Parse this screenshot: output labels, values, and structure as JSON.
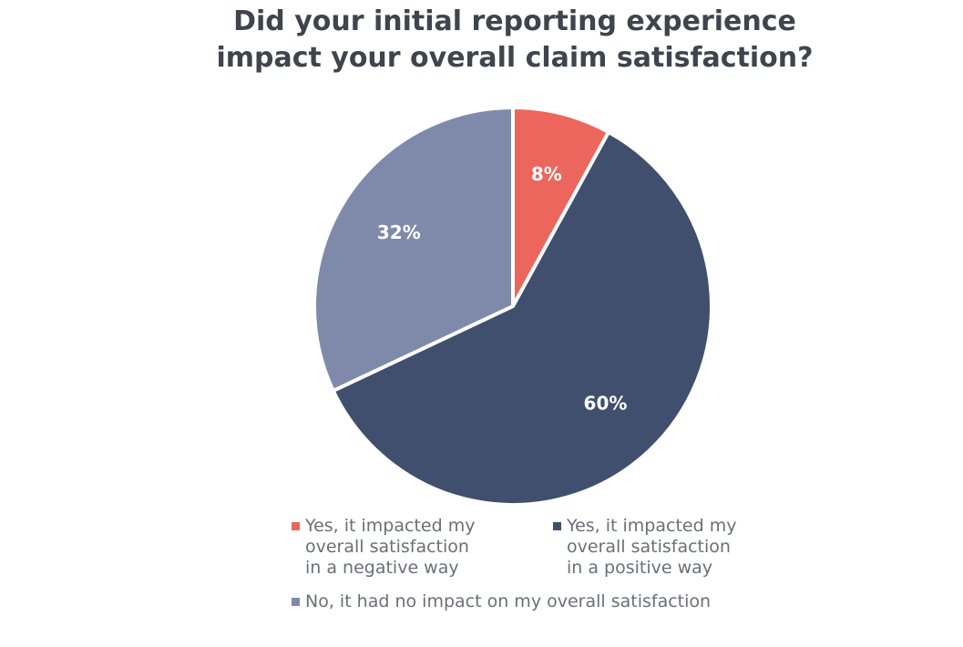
{
  "chart_data": {
    "type": "pie",
    "title_lines": [
      "Did your initial reporting experience",
      "impact your overall claim satisfaction?"
    ],
    "slices": [
      {
        "label_lines": [
          "Yes, it impacted my",
          "overall satisfaction",
          "in a negative way"
        ],
        "value": 8,
        "value_label": "8%",
        "color": "#ec665d"
      },
      {
        "label_lines": [
          "Yes, it impacted my",
          "overall satisfaction",
          "in a positive way"
        ],
        "value": 60,
        "value_label": "60%",
        "color": "#414f6e"
      },
      {
        "label_lines": [
          "No, it had no impact on my overall satisfaction"
        ],
        "value": 32,
        "value_label": "32%",
        "color": "#7f8aab"
      }
    ],
    "start_angle_deg": 0,
    "direction": "clockwise",
    "legend_position": "bottom"
  }
}
